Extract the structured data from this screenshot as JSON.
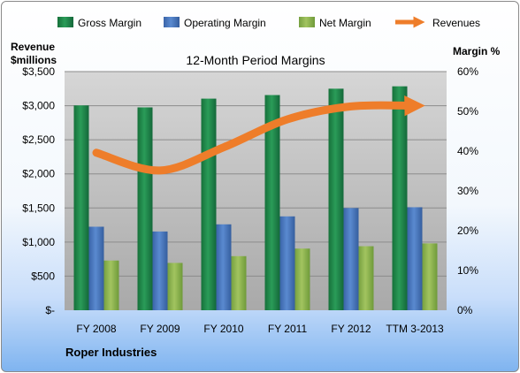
{
  "chart_data": {
    "type": "bar",
    "title": "12-Month Period Margins",
    "left_axis_title_line1": "Revenue",
    "left_axis_title_line2": "$millions",
    "right_axis_title": "Margin %",
    "footer": "Roper Industries",
    "categories": [
      "FY 2008",
      "FY 2009",
      "FY 2010",
      "FY 2011",
      "FY 2012",
      "TTM 3-2013"
    ],
    "left_axis": {
      "range": [
        0,
        3500
      ],
      "ticks": [
        0,
        500,
        1000,
        1500,
        2000,
        2500,
        3000,
        3500
      ],
      "tick_labels": [
        "$-",
        "$500",
        "$1,000",
        "$1,500",
        "$2,000",
        "$2,500",
        "$3,000",
        "$3,500"
      ]
    },
    "right_axis": {
      "range": [
        0,
        60
      ],
      "ticks": [
        0,
        10,
        20,
        30,
        40,
        50,
        60
      ],
      "tick_labels": [
        "0%",
        "10%",
        "20%",
        "30%",
        "40%",
        "50%",
        "60%"
      ]
    },
    "series": [
      {
        "name": "Gross Margin",
        "type": "bar",
        "axis": "right",
        "color": "#1e8748",
        "values": [
          51.5,
          51.0,
          53.2,
          54.1,
          55.7,
          56.3
        ]
      },
      {
        "name": "Operating Margin",
        "type": "bar",
        "axis": "right",
        "color": "#4a78c0",
        "values": [
          21.0,
          19.8,
          21.6,
          23.6,
          25.7,
          25.9
        ]
      },
      {
        "name": "Net Margin",
        "type": "bar",
        "axis": "right",
        "color": "#8db24a",
        "values": [
          12.5,
          11.9,
          13.6,
          15.5,
          16.1,
          16.8
        ]
      },
      {
        "name": "Revenues",
        "type": "line",
        "axis": "left",
        "color": "#ee7d2a",
        "values": [
          2310,
          2050,
          2390,
          2800,
          2990,
          3000
        ]
      }
    ],
    "grid": true,
    "legend_position": "top"
  }
}
